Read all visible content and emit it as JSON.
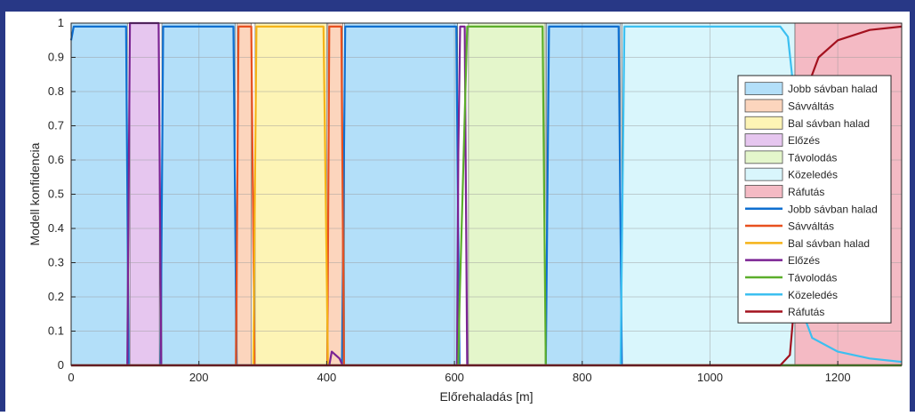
{
  "chart_data": {
    "type": "area",
    "xlabel": "Előrehaladás [m]",
    "ylabel": "Modell konfidencia",
    "xlim": [
      0,
      1300
    ],
    "ylim": [
      0,
      1
    ],
    "x_ticks": [
      0,
      200,
      400,
      600,
      800,
      1000,
      1200
    ],
    "y_ticks": [
      0,
      0.1,
      0.2,
      0.3,
      0.4,
      0.5,
      0.6,
      0.7,
      0.8,
      0.9,
      1
    ],
    "y_tick_labels": [
      "0",
      "0.1",
      "0.2",
      "0.3",
      "0.4",
      "0.5",
      "0.6",
      "0.7",
      "0.8",
      "0.9",
      "1"
    ],
    "grid": true,
    "legend_position": "right",
    "classes": [
      {
        "name": "Jobb sávban halad",
        "fill": "#b3dff9",
        "line": "#0e6fd0"
      },
      {
        "name": "Sávváltás",
        "fill": "#fcd5bd",
        "line": "#e8501f"
      },
      {
        "name": "Bal sávban halad",
        "fill": "#fdf4b5",
        "line": "#f5b318"
      },
      {
        "name": "Előzés",
        "fill": "#e6c6ef",
        "line": "#7b2393"
      },
      {
        "name": "Távolodás",
        "fill": "#e4f6cb",
        "line": "#5cae2b"
      },
      {
        "name": "Közeledés",
        "fill": "#d9f6fc",
        "line": "#3cbff0"
      },
      {
        "name": "Ráfutás",
        "fill": "#f4bac4",
        "line": "#a3121f"
      }
    ],
    "segments": [
      {
        "class": "Jobb sávban halad",
        "x_start": 0,
        "x_end": 88
      },
      {
        "class": "Előzés",
        "x_start": 92,
        "x_end": 138
      },
      {
        "class": "Jobb sávban halad",
        "x_start": 142,
        "x_end": 257
      },
      {
        "class": "Sávváltás",
        "x_start": 260,
        "x_end": 282
      },
      {
        "class": "Bal sávban halad",
        "x_start": 288,
        "x_end": 400
      },
      {
        "class": "Sávváltás",
        "x_start": 402,
        "x_end": 425
      },
      {
        "class": "Jobb sávban halad",
        "x_start": 428,
        "x_end": 605
      },
      {
        "class": "Távolodás",
        "x_start": 622,
        "x_end": 742
      },
      {
        "class": "Jobb sávban halad",
        "x_start": 744,
        "x_end": 860
      },
      {
        "class": "Közeledés",
        "x_start": 862,
        "x_end": 1133
      },
      {
        "class": "Ráfutás",
        "x_start": 1133,
        "x_end": 1300
      }
    ],
    "series": [
      {
        "name": "Jobb sávban halad",
        "points": [
          [
            0,
            0.95
          ],
          [
            4,
            0.99
          ],
          [
            86,
            0.99
          ],
          [
            90,
            0.0
          ],
          [
            140,
            0.0
          ],
          [
            144,
            0.99
          ],
          [
            254,
            0.99
          ],
          [
            259,
            0.0
          ],
          [
            424,
            0.0
          ],
          [
            429,
            0.99
          ],
          [
            603,
            0.99
          ],
          [
            608,
            0.0
          ],
          [
            743,
            0.0
          ],
          [
            748,
            0.99
          ],
          [
            857,
            0.99
          ],
          [
            862,
            0.0
          ],
          [
            1300,
            0.0
          ]
        ]
      },
      {
        "name": "Sávváltás",
        "points": [
          [
            0,
            0.0
          ],
          [
            258,
            0.0
          ],
          [
            262,
            0.99
          ],
          [
            282,
            0.99
          ],
          [
            287,
            0.0
          ],
          [
            401,
            0.0
          ],
          [
            404,
            0.99
          ],
          [
            423,
            0.99
          ],
          [
            427,
            0.0
          ],
          [
            1300,
            0.0
          ]
        ]
      },
      {
        "name": "Bal sávban halad",
        "points": [
          [
            0,
            0.0
          ],
          [
            285,
            0.0
          ],
          [
            290,
            0.99
          ],
          [
            395,
            0.99
          ],
          [
            402,
            0.0
          ],
          [
            1300,
            0.0
          ]
        ]
      },
      {
        "name": "Előzés",
        "points": [
          [
            0,
            0.0
          ],
          [
            88,
            0.0
          ],
          [
            92,
            1.0
          ],
          [
            137,
            1.0
          ],
          [
            141,
            0.0
          ],
          [
            404,
            0.0
          ],
          [
            408,
            0.04
          ],
          [
            420,
            0.02
          ],
          [
            425,
            0.0
          ],
          [
            604,
            0.0
          ],
          [
            606,
            0.62
          ],
          [
            609,
            0.99
          ],
          [
            616,
            0.99
          ],
          [
            620,
            0.0
          ],
          [
            1300,
            0.0
          ]
        ]
      },
      {
        "name": "Távolodás",
        "points": [
          [
            0,
            0.0
          ],
          [
            606,
            0.0
          ],
          [
            608,
            0.18
          ],
          [
            620,
            0.99
          ],
          [
            738,
            0.99
          ],
          [
            743,
            0.0
          ],
          [
            1300,
            0.0
          ]
        ]
      },
      {
        "name": "Közeledés",
        "points": [
          [
            0,
            0.0
          ],
          [
            860,
            0.0
          ],
          [
            866,
            0.99
          ],
          [
            1110,
            0.99
          ],
          [
            1122,
            0.96
          ],
          [
            1130,
            0.82
          ],
          [
            1134,
            0.45
          ],
          [
            1140,
            0.18
          ],
          [
            1160,
            0.08
          ],
          [
            1200,
            0.04
          ],
          [
            1250,
            0.02
          ],
          [
            1300,
            0.01
          ]
        ]
      },
      {
        "name": "Ráfutás",
        "points": [
          [
            0,
            0.0
          ],
          [
            1110,
            0.0
          ],
          [
            1125,
            0.03
          ],
          [
            1133,
            0.2
          ],
          [
            1138,
            0.55
          ],
          [
            1150,
            0.8
          ],
          [
            1170,
            0.9
          ],
          [
            1200,
            0.95
          ],
          [
            1250,
            0.98
          ],
          [
            1300,
            0.99
          ]
        ]
      }
    ]
  }
}
